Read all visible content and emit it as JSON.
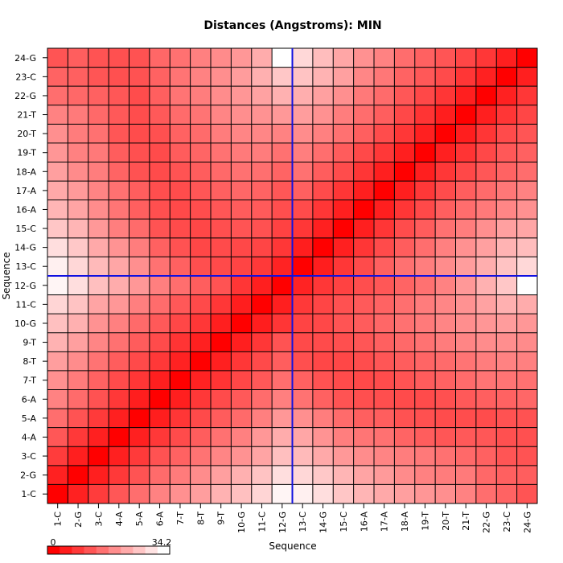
{
  "chart_data": {
    "type": "heatmap",
    "title": "Distances (Angstroms):  MIN",
    "xlabel": "Sequence",
    "ylabel": "Sequence",
    "x_labels": [
      "1-C",
      "2-G",
      "3-C",
      "4-A",
      "5-A",
      "6-A",
      "7-T",
      "8-T",
      "9-T",
      "10-G",
      "11-C",
      "12-G",
      "13-C",
      "14-G",
      "15-C",
      "16-A",
      "17-A",
      "18-A",
      "19-T",
      "20-T",
      "21-T",
      "22-G",
      "23-C",
      "24-G"
    ],
    "y_labels": [
      "1-C",
      "2-G",
      "3-C",
      "4-A",
      "5-A",
      "6-A",
      "7-T",
      "8-T",
      "9-T",
      "10-G",
      "11-C",
      "12-G",
      "13-C",
      "14-G",
      "15-C",
      "16-A",
      "17-A",
      "18-A",
      "19-T",
      "20-T",
      "21-T",
      "22-G",
      "23-C",
      "24-G"
    ],
    "value_range": [
      0,
      34.2
    ],
    "colorbar": {
      "min_label": "0",
      "max_label": "34.2"
    },
    "divider_after_index": 12,
    "values": [
      [
        0.0,
        4.4,
        8.1,
        11.7,
        14.8,
        17.4,
        19.3,
        21.2,
        23.9,
        25.8,
        28.6,
        32.8,
        32.2,
        29.8,
        26.6,
        24.3,
        22.7,
        21.3,
        20.1,
        19.2,
        17.5,
        14.8,
        13.3,
        11.2
      ],
      [
        4.4,
        0.0,
        4.1,
        7.6,
        11.1,
        14.4,
        16.5,
        18.8,
        21.3,
        23.6,
        26.2,
        29.8,
        28.8,
        26.8,
        24.3,
        22.0,
        20.7,
        18.6,
        17.3,
        16.6,
        16.4,
        13.9,
        12.9,
        12.6
      ],
      [
        8.1,
        4.1,
        0.0,
        4.3,
        7.8,
        11.0,
        13.2,
        15.4,
        17.8,
        19.6,
        22.0,
        25.6,
        25.0,
        22.7,
        20.4,
        18.8,
        17.7,
        16.8,
        16.2,
        15.2,
        14.1,
        13.0,
        11.4,
        11.1
      ],
      [
        11.7,
        7.6,
        4.3,
        0.0,
        4.3,
        7.5,
        10.0,
        12.5,
        15.1,
        17.1,
        20.3,
        23.1,
        22.2,
        19.7,
        16.9,
        15.7,
        15.1,
        13.4,
        12.5,
        11.6,
        12.0,
        11.7,
        10.7,
        10.7
      ],
      [
        14.8,
        11.1,
        7.8,
        4.3,
        0.0,
        4.0,
        7.3,
        9.9,
        12.4,
        14.2,
        17.0,
        20.3,
        19.2,
        16.7,
        14.3,
        12.7,
        12.6,
        11.0,
        10.7,
        10.2,
        10.3,
        10.2,
        11.0,
        11.0
      ],
      [
        17.4,
        14.4,
        11.0,
        7.5,
        4.0,
        0.0,
        4.1,
        7.5,
        10.1,
        12.0,
        14.5,
        17.0,
        15.3,
        13.0,
        11.1,
        10.6,
        10.5,
        10.0,
        10.0,
        10.7,
        12.0,
        12.8,
        13.2,
        13.8
      ],
      [
        19.3,
        16.5,
        13.2,
        10.0,
        7.3,
        4.1,
        0.0,
        4.5,
        7.0,
        9.5,
        11.8,
        14.8,
        13.0,
        11.0,
        10.0,
        9.8,
        10.2,
        11.1,
        12.4,
        13.1,
        14.3,
        15.5,
        15.6,
        15.2
      ],
      [
        21.2,
        18.8,
        15.4,
        12.5,
        9.9,
        7.5,
        4.5,
        0.0,
        4.3,
        7.4,
        9.9,
        12.6,
        10.6,
        9.5,
        9.5,
        10.3,
        11.5,
        12.5,
        13.5,
        14.3,
        15.6,
        16.8,
        17.5,
        17.1
      ],
      [
        23.9,
        21.3,
        17.8,
        15.1,
        12.4,
        10.1,
        7.0,
        4.3,
        0.0,
        4.2,
        7.4,
        11.1,
        9.9,
        10.0,
        10.6,
        11.6,
        12.9,
        14.1,
        15.3,
        16.6,
        17.9,
        18.8,
        19.1,
        18.6
      ],
      [
        25.8,
        23.6,
        19.6,
        17.1,
        14.2,
        12.0,
        9.5,
        7.4,
        4.2,
        0.0,
        4.0,
        7.2,
        9.1,
        9.7,
        11.2,
        12.4,
        13.8,
        15.2,
        16.4,
        17.8,
        19.0,
        20.1,
        20.9,
        20.3
      ],
      [
        28.6,
        26.2,
        22.0,
        20.3,
        17.0,
        14.5,
        11.8,
        9.9,
        7.4,
        4.0,
        0.0,
        4.2,
        7.6,
        9.2,
        10.9,
        12.1,
        13.3,
        14.9,
        16.6,
        18.0,
        19.6,
        21.7,
        23.6,
        23.1
      ],
      [
        32.8,
        29.8,
        25.6,
        23.1,
        20.3,
        17.0,
        14.8,
        12.6,
        11.1,
        7.2,
        4.2,
        0.0,
        4.7,
        7.4,
        8.9,
        10.4,
        11.7,
        13.4,
        15.2,
        17.5,
        20.4,
        23.7,
        26.7,
        34.2
      ],
      [
        32.2,
        28.8,
        25.0,
        22.2,
        19.2,
        15.3,
        13.0,
        10.6,
        9.9,
        9.1,
        7.6,
        4.7,
        0.0,
        4.0,
        7.4,
        10.1,
        12.9,
        15.1,
        16.9,
        18.8,
        21.1,
        23.3,
        26.1,
        29.0
      ],
      [
        29.8,
        26.8,
        22.7,
        19.7,
        16.7,
        13.0,
        11.0,
        9.5,
        10.0,
        9.7,
        9.2,
        7.4,
        4.0,
        0.0,
        4.3,
        7.3,
        10.0,
        12.5,
        14.7,
        17.2,
        19.5,
        21.5,
        24.0,
        25.3
      ],
      [
        26.6,
        24.3,
        20.4,
        16.9,
        14.3,
        11.1,
        10.0,
        9.5,
        10.6,
        11.2,
        10.9,
        8.9,
        7.4,
        4.3,
        0.0,
        4.1,
        7.3,
        10.2,
        12.4,
        15.2,
        16.8,
        19.2,
        21.4,
        22.3
      ],
      [
        24.3,
        22.0,
        18.8,
        15.7,
        12.7,
        10.6,
        9.8,
        10.3,
        11.6,
        12.4,
        12.1,
        10.4,
        10.1,
        7.3,
        4.1,
        0.0,
        4.1,
        7.3,
        9.8,
        12.8,
        14.6,
        16.2,
        18.0,
        19.5
      ],
      [
        22.7,
        20.7,
        17.7,
        15.1,
        12.6,
        10.5,
        10.2,
        11.5,
        12.9,
        13.8,
        13.3,
        11.7,
        12.9,
        10.0,
        7.3,
        4.1,
        0.0,
        4.2,
        7.5,
        10.2,
        12.6,
        14.4,
        16.0,
        17.5
      ],
      [
        21.3,
        18.6,
        16.8,
        13.4,
        11.0,
        10.0,
        11.1,
        12.5,
        14.1,
        15.2,
        14.9,
        13.4,
        15.1,
        12.5,
        10.2,
        7.3,
        4.2,
        0.0,
        4.1,
        7.4,
        9.6,
        11.7,
        13.3,
        14.6
      ],
      [
        20.1,
        17.3,
        16.2,
        12.5,
        10.7,
        10.0,
        12.4,
        13.5,
        15.3,
        16.4,
        16.6,
        15.2,
        16.9,
        14.7,
        12.4,
        9.8,
        7.5,
        4.1,
        0.0,
        4.3,
        7.0,
        9.6,
        11.8,
        13.0
      ],
      [
        19.2,
        16.6,
        15.2,
        11.6,
        10.2,
        10.7,
        13.1,
        14.3,
        16.6,
        17.8,
        18.0,
        17.5,
        18.8,
        17.2,
        15.2,
        12.8,
        10.2,
        7.4,
        4.3,
        0.0,
        4.0,
        7.3,
        10.1,
        11.4
      ],
      [
        17.5,
        16.4,
        14.1,
        12.0,
        10.3,
        12.0,
        14.3,
        15.6,
        17.9,
        19.0,
        19.6,
        20.4,
        21.1,
        19.5,
        16.8,
        14.6,
        12.6,
        9.6,
        7.0,
        4.0,
        0.0,
        4.2,
        7.2,
        9.4
      ],
      [
        14.8,
        13.9,
        13.0,
        11.7,
        10.2,
        12.8,
        15.5,
        16.8,
        18.8,
        20.1,
        21.7,
        23.7,
        23.3,
        21.5,
        19.2,
        16.2,
        14.4,
        11.7,
        9.6,
        7.3,
        4.2,
        0.0,
        4.4,
        7.4
      ],
      [
        13.3,
        12.9,
        11.4,
        10.7,
        11.0,
        13.2,
        15.6,
        17.5,
        19.1,
        20.9,
        23.6,
        26.7,
        26.1,
        24.0,
        21.4,
        18.0,
        16.0,
        13.3,
        11.8,
        10.1,
        7.2,
        4.4,
        0.0,
        4.2
      ],
      [
        11.2,
        12.6,
        11.1,
        10.7,
        11.0,
        13.8,
        15.2,
        17.1,
        18.6,
        20.3,
        23.1,
        34.2,
        29.0,
        25.3,
        22.3,
        19.5,
        17.5,
        14.6,
        13.0,
        11.4,
        9.4,
        7.4,
        4.2,
        0.0
      ]
    ]
  }
}
